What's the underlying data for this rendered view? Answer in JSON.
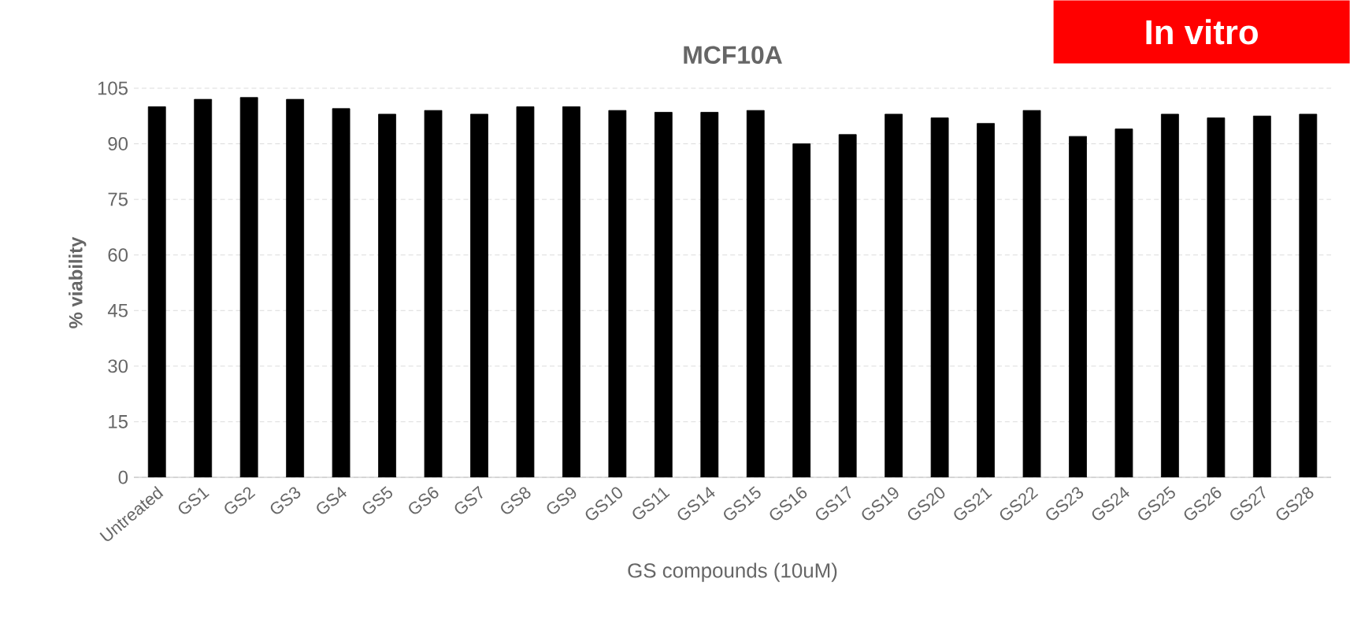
{
  "chart_data": {
    "type": "bar",
    "title": "MCF10A",
    "xlabel": "GS compounds (10uM)",
    "ylabel": "% viability",
    "annotations": [
      "In vitro"
    ],
    "categories": [
      "Untreated",
      "GS1",
      "GS2",
      "GS3",
      "GS4",
      "GS5",
      "GS6",
      "GS7",
      "GS8",
      "GS9",
      "GS10",
      "GS11",
      "GS14",
      "GS15",
      "GS16",
      "GS17",
      "GS19",
      "GS20",
      "GS21",
      "GS22",
      "GS23",
      "GS24",
      "GS25",
      "GS26",
      "GS27",
      "GS28"
    ],
    "values": [
      100,
      102,
      102.5,
      102,
      99.5,
      98,
      99,
      98,
      100,
      100,
      99,
      98.5,
      98.5,
      99,
      90,
      92.5,
      98,
      97,
      95.5,
      99,
      92,
      94,
      98,
      97,
      97.5,
      98
    ],
    "color": "#000000",
    "ylim": [
      0,
      105
    ],
    "yticks": [
      0,
      15,
      30,
      45,
      60,
      75,
      90,
      105
    ],
    "grid": "y"
  }
}
